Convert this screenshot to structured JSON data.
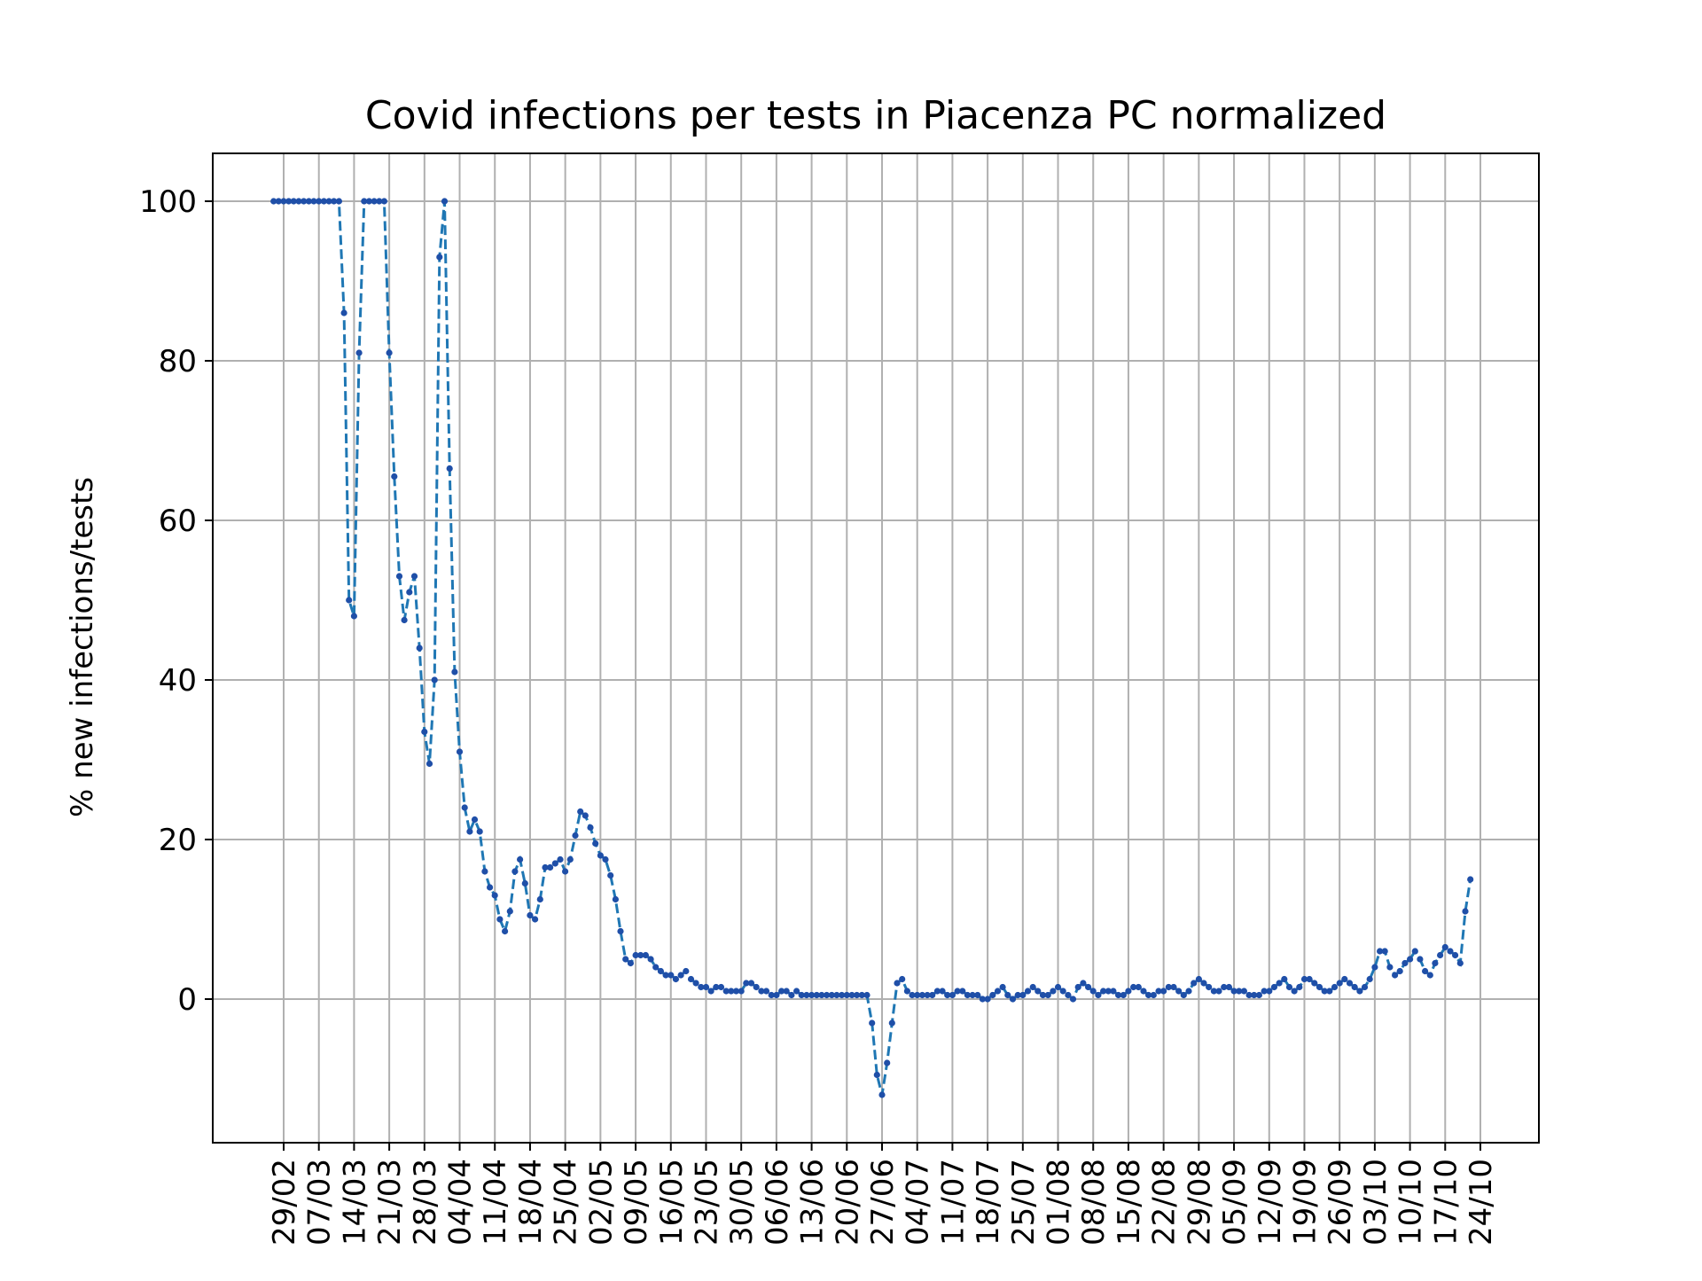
{
  "chart_data": {
    "type": "line",
    "title": "Covid infections per tests in Piacenza PC normalized",
    "xlabel": "",
    "ylabel": "% new infections/tests",
    "ylim": [
      -18,
      106
    ],
    "yticks": [
      0,
      20,
      40,
      60,
      80,
      100
    ],
    "grid": true,
    "legend": "none",
    "colors": {
      "line": "#1f77b4",
      "marker": "#1f4fa8",
      "grid": "#b0b0b0"
    },
    "x_tick_labels": [
      "29/02",
      "07/03",
      "14/03",
      "21/03",
      "28/03",
      "04/04",
      "11/04",
      "18/04",
      "25/04",
      "02/05",
      "09/05",
      "16/05",
      "23/05",
      "30/05",
      "06/06",
      "13/06",
      "20/06",
      "27/06",
      "04/07",
      "11/07",
      "18/07",
      "25/07",
      "01/08",
      "08/08",
      "15/08",
      "22/08",
      "29/08",
      "05/09",
      "12/09",
      "19/09",
      "26/09",
      "03/10",
      "10/10",
      "17/10",
      "24/10"
    ],
    "series": [
      {
        "start_date": "2020-02-27",
        "style": "dashed-with-dots",
        "values": [
          100,
          100,
          100,
          100,
          100,
          100,
          100,
          100,
          100,
          100,
          100,
          100,
          100,
          100,
          86,
          50,
          48,
          81,
          100,
          100,
          100,
          100,
          100,
          81,
          65.5,
          53,
          47.5,
          51,
          53,
          44,
          33.5,
          29.5,
          40,
          93,
          100,
          66.5,
          41,
          31,
          24,
          21,
          22.5,
          21,
          16,
          14,
          13,
          10,
          8.5,
          11,
          16,
          17.5,
          14.5,
          10.5,
          10,
          12.5,
          16.5,
          16.5,
          17,
          17.5,
          16,
          17.5,
          20.5,
          23.5,
          23,
          21.5,
          19.5,
          18,
          17.5,
          15.5,
          12.5,
          8.5,
          5,
          4.5,
          5.5,
          5.5,
          5.5,
          5,
          4,
          3.5,
          3,
          3,
          2.5,
          3,
          3.5,
          2.5,
          2,
          1.5,
          1.5,
          1,
          1.5,
          1.5,
          1,
          1,
          1,
          1,
          2,
          2,
          1.5,
          1,
          1,
          0.5,
          0.5,
          1,
          1,
          0.5,
          1,
          0.5,
          0.5,
          0.5,
          0.5,
          0.5,
          0.5,
          0.5,
          0.5,
          0.5,
          0.5,
          0.5,
          0.5,
          0.5,
          0.5,
          -3,
          -9.5,
          -12,
          -8,
          -3,
          2,
          2.5,
          1,
          0.5,
          0.5,
          0.5,
          0.5,
          0.5,
          1,
          1,
          0.5,
          0.5,
          1,
          1,
          0.5,
          0.5,
          0.5,
          0,
          0,
          0.5,
          1,
          1.5,
          0.5,
          0,
          0.5,
          0.5,
          1,
          1.5,
          1,
          0.5,
          0.5,
          1,
          1.5,
          1,
          0.5,
          0,
          1.5,
          2,
          1.5,
          1,
          0.5,
          1,
          1,
          1,
          0.5,
          0.5,
          1,
          1.5,
          1.5,
          1,
          0.5,
          0.5,
          1,
          1,
          1.5,
          1.5,
          1,
          0.5,
          1,
          2,
          2.5,
          2,
          1.5,
          1,
          1,
          1.5,
          1.5,
          1,
          1,
          1,
          0.5,
          0.5,
          0.5,
          1,
          1,
          1.5,
          2,
          2.5,
          1.5,
          1,
          1.5,
          2.5,
          2.5,
          2,
          1.5,
          1,
          1,
          1.5,
          2,
          2.5,
          2,
          1.5,
          1,
          1.5,
          2.5,
          4,
          6,
          6,
          4,
          3,
          3.5,
          4.5,
          5,
          6,
          5,
          3.5,
          3,
          4.5,
          5.5,
          6.5,
          6,
          5.5,
          4.5,
          11,
          15
        ]
      }
    ]
  }
}
